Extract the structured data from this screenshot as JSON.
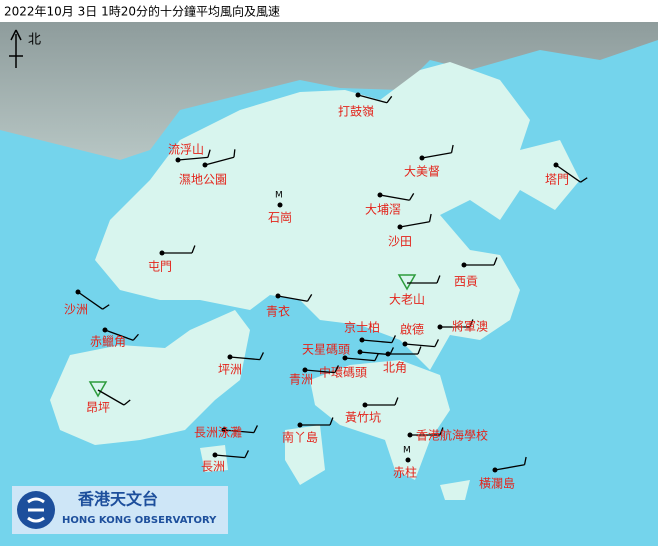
{
  "title": "2022年10月 3日 1時20分的十分鐘平均風向及風速",
  "north": "北",
  "stations": [
    {
      "label": "打鼓嶺"
    },
    {
      "label": "流浮山"
    },
    {
      "label": "濕地公園"
    },
    {
      "label": "大美督"
    },
    {
      "label": "塔門"
    },
    {
      "label": "石崗"
    },
    {
      "label": "大埔滘"
    },
    {
      "label": "沙田"
    },
    {
      "label": "屯門"
    },
    {
      "label": "西貢"
    },
    {
      "label": "大老山"
    },
    {
      "label": "沙洲"
    },
    {
      "label": "青衣"
    },
    {
      "label": "京士柏"
    },
    {
      "label": "啟德"
    },
    {
      "label": "將軍澳"
    },
    {
      "label": "赤鱲角"
    },
    {
      "label": "天星碼頭"
    },
    {
      "label": "北角"
    },
    {
      "label": "坪洲"
    },
    {
      "label": "中環碼頭"
    },
    {
      "label": "青洲"
    },
    {
      "label": "昂坪"
    },
    {
      "label": "黃竹坑"
    },
    {
      "label": "長洲泳灘"
    },
    {
      "label": "南丫島"
    },
    {
      "label": "香港航海學校"
    },
    {
      "label": "赤柱"
    },
    {
      "label": "長洲"
    },
    {
      "label": "橫瀾島"
    }
  ],
  "logo": {
    "chinese": "香港天文台",
    "english": "HONG KONG OBSERVATORY"
  }
}
